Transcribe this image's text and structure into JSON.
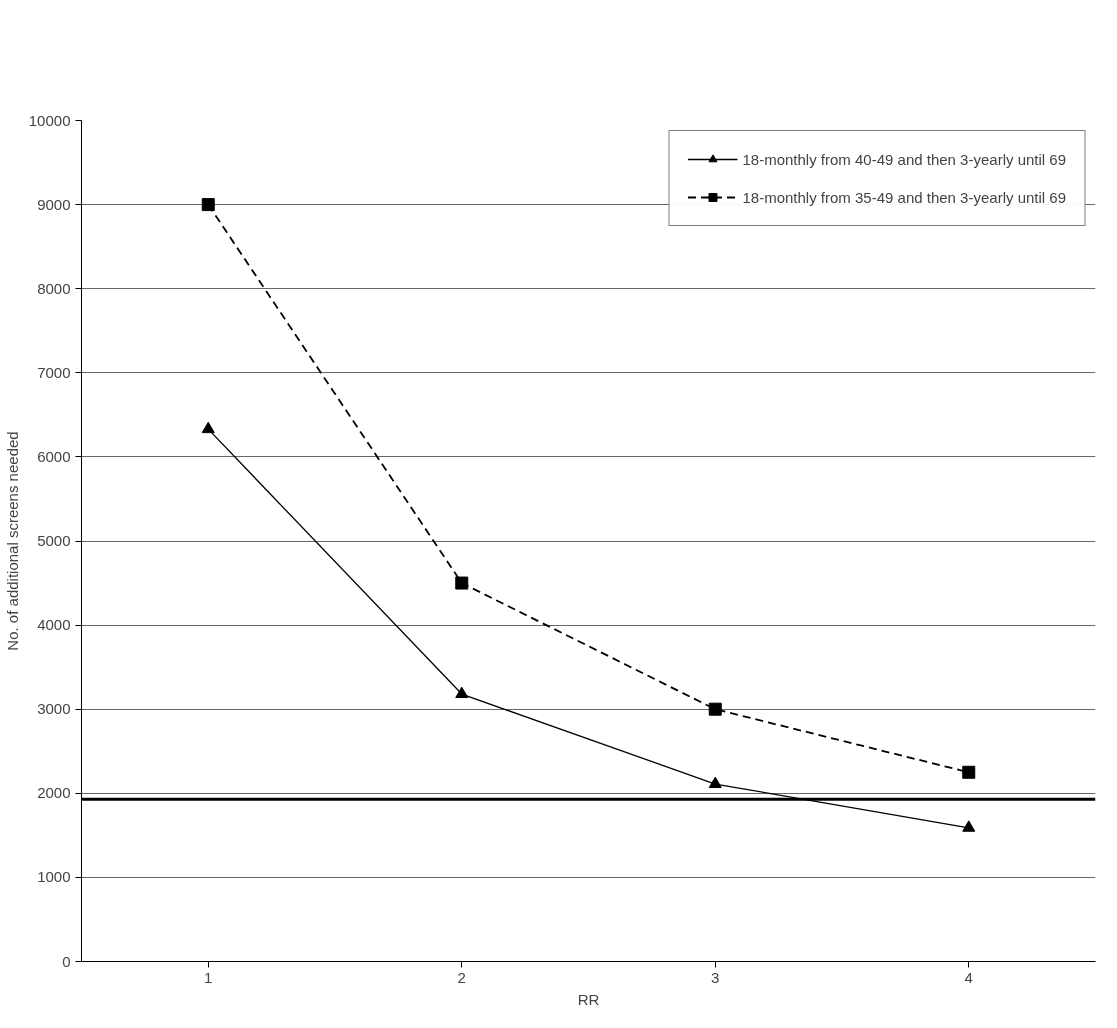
{
  "chart_data": {
    "type": "line",
    "xlabel": "RR",
    "ylabel": "No. of additional screens needed",
    "x": [
      1,
      2,
      3,
      4
    ],
    "xlim": [
      0.5,
      4.5
    ],
    "xticks": [
      1,
      2,
      3,
      4
    ],
    "ylim": [
      0,
      10000
    ],
    "yticks": [
      0,
      1000,
      2000,
      3000,
      4000,
      5000,
      6000,
      7000,
      8000,
      9000,
      10000
    ],
    "series": [
      {
        "name": "18-monthly from 40-49 and then 3-yearly until 69",
        "color": "#000000",
        "values": [
          6330,
          3180,
          2110,
          1590
        ],
        "marker": "triangle",
        "line_style": "solid"
      },
      {
        "name": "18-monthly from 35-49 and then 3-yearly until 69",
        "color": "#000000",
        "values": [
          9000,
          4500,
          3000,
          2250
        ],
        "marker": "square",
        "line_style": "dashed"
      }
    ],
    "ref_lines": [
      {
        "axis": "y",
        "value": 1930,
        "color": "#000000"
      }
    ],
    "grid": "y",
    "legend": "top right"
  }
}
